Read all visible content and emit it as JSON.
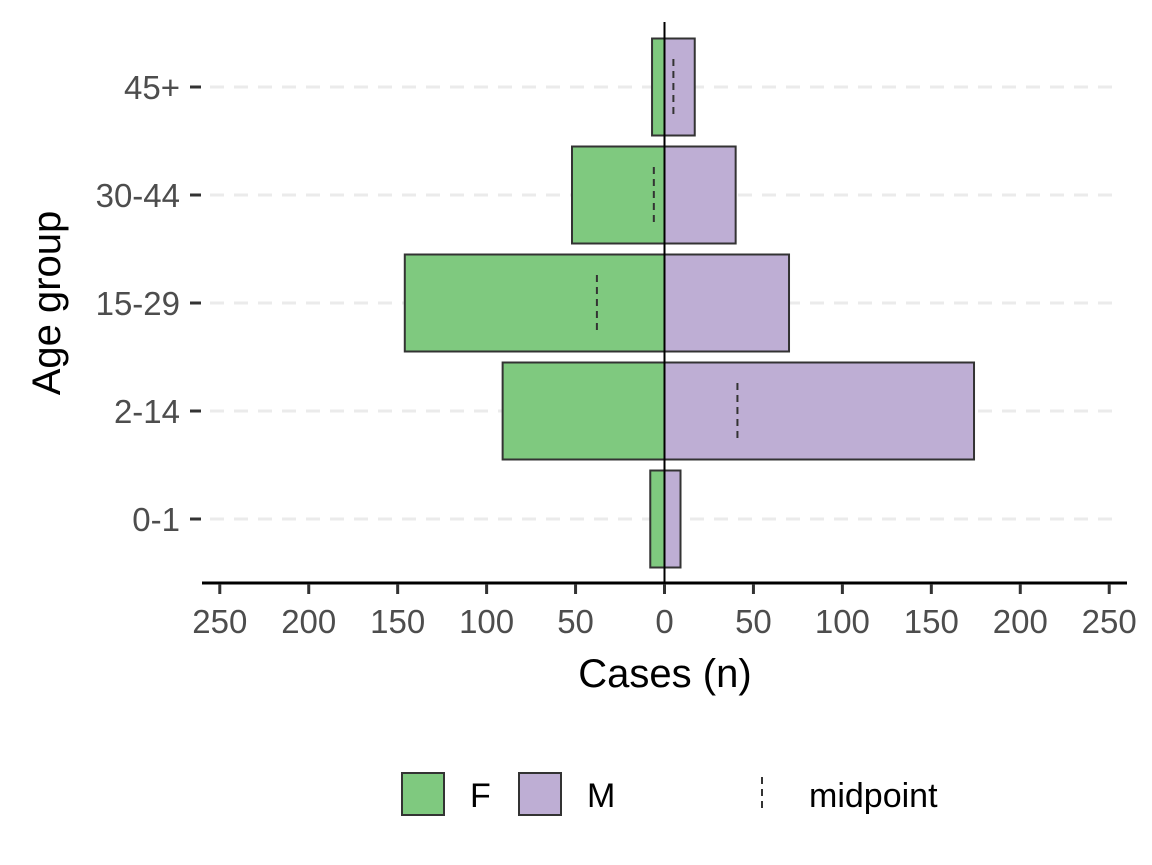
{
  "chart_data": {
    "type": "bar",
    "orientation": "horizontal-diverging",
    "title": "",
    "xlabel": "Cases (n)",
    "ylabel": "Age group",
    "categories": [
      "0-1",
      "2-14",
      "15-29",
      "30-44",
      "45+"
    ],
    "series": [
      {
        "name": "F",
        "color": "#7fc97f",
        "values": [
          8,
          91,
          146,
          52,
          7
        ]
      },
      {
        "name": "M",
        "color": "#beaed4",
        "values": [
          9,
          174,
          70,
          40,
          17
        ]
      }
    ],
    "midpoint": {
      "name": "midpoint",
      "values": [
        0,
        41,
        -38,
        -6,
        5
      ]
    },
    "xlim": [
      -260,
      260
    ],
    "x_ticks": [
      -250,
      -200,
      -150,
      -100,
      -50,
      0,
      50,
      100,
      150,
      200,
      250
    ],
    "x_tick_labels": [
      "250",
      "200",
      "150",
      "100",
      "50",
      "0",
      "50",
      "100",
      "150",
      "200",
      "250"
    ],
    "grid": "horizontal-dashed",
    "legend_position": "bottom",
    "legend_labels": [
      "F",
      "M",
      "midpoint"
    ]
  }
}
